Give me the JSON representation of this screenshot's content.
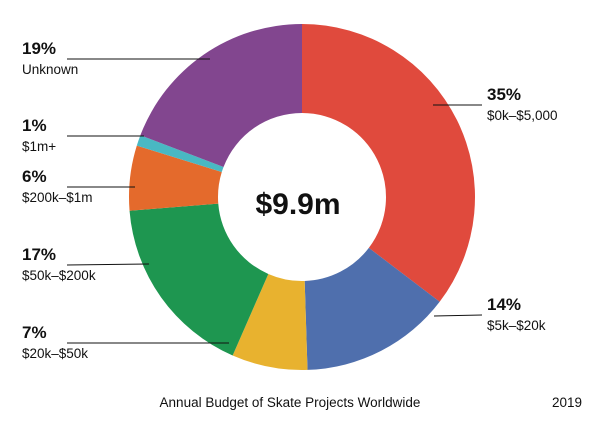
{
  "chart_data": {
    "type": "pie",
    "donut": true,
    "center_label": "$9.9m",
    "caption": "Annual Budget of Skate Projects Worldwide",
    "year": "2019",
    "slices": [
      {
        "category": "$0k–$5,000",
        "value": 35,
        "label": "35%",
        "color": "#e04a3d"
      },
      {
        "category": "$5k–$20k",
        "value": 14,
        "label": "14%",
        "color": "#4f6fad"
      },
      {
        "category": "$20k–$50k",
        "value": 7,
        "label": "7%",
        "color": "#e8b22f"
      },
      {
        "category": "$50k–$200k",
        "value": 17,
        "label": "17%",
        "color": "#1e9650"
      },
      {
        "category": "$200k–$1m",
        "value": 6,
        "label": "6%",
        "color": "#e46a2c"
      },
      {
        "category": "$1m+",
        "value": 1,
        "label": "1%",
        "color": "#49b8c3"
      },
      {
        "category": "Unknown",
        "value": 19,
        "label": "19%",
        "color": "#82468f"
      }
    ]
  }
}
